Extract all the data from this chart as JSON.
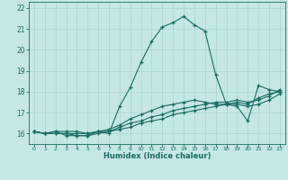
{
  "xlabel": "Humidex (Indice chaleur)",
  "xlim": [
    -0.5,
    23.5
  ],
  "ylim": [
    15.5,
    22.3
  ],
  "bg_color": "#c5e8e5",
  "grid_color": "#a8d4d0",
  "line_color": "#1a6b60",
  "xticks": [
    0,
    1,
    2,
    3,
    4,
    5,
    6,
    7,
    8,
    9,
    10,
    11,
    12,
    13,
    14,
    15,
    16,
    17,
    18,
    19,
    20,
    21,
    22,
    23
  ],
  "yticks": [
    16,
    17,
    18,
    19,
    20,
    21,
    22
  ],
  "lines": [
    [
      16.1,
      16.0,
      16.1,
      15.9,
      15.9,
      15.9,
      16.1,
      16.0,
      17.3,
      18.2,
      19.4,
      20.4,
      21.1,
      21.3,
      21.6,
      21.2,
      20.9,
      18.8,
      17.4,
      17.3,
      16.6,
      18.3,
      18.1,
      18.0
    ],
    [
      16.1,
      16.0,
      16.0,
      16.0,
      16.0,
      16.0,
      16.1,
      16.1,
      16.2,
      16.3,
      16.5,
      16.6,
      16.7,
      16.9,
      17.0,
      17.1,
      17.2,
      17.3,
      17.4,
      17.5,
      17.4,
      17.7,
      17.9,
      18.0
    ],
    [
      16.1,
      16.0,
      16.0,
      16.0,
      15.9,
      15.9,
      16.0,
      16.1,
      16.3,
      16.5,
      16.6,
      16.8,
      16.9,
      17.1,
      17.2,
      17.3,
      17.4,
      17.5,
      17.5,
      17.6,
      17.5,
      17.6,
      17.8,
      18.1
    ],
    [
      16.1,
      16.0,
      16.1,
      16.1,
      16.1,
      16.0,
      16.1,
      16.2,
      16.4,
      16.7,
      16.9,
      17.1,
      17.3,
      17.4,
      17.5,
      17.6,
      17.5,
      17.4,
      17.4,
      17.4,
      17.3,
      17.4,
      17.6,
      17.9
    ]
  ]
}
